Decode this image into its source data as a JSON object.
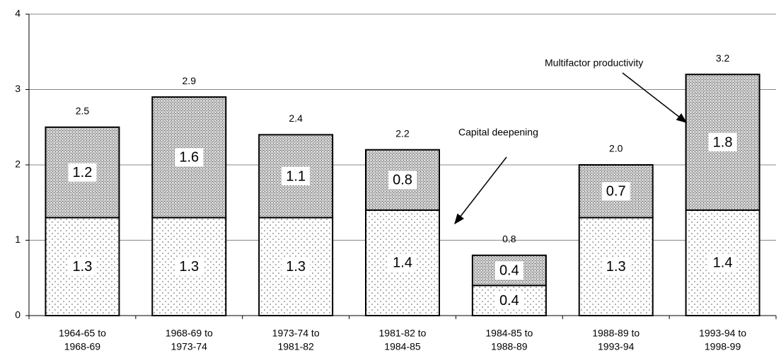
{
  "chart_data": {
    "type": "stacked_bar",
    "categories": [
      [
        "1964-65 to",
        "1968-69"
      ],
      [
        "1968-69 to",
        "1973-74"
      ],
      [
        "1973-74 to",
        "1981-82"
      ],
      [
        "1981-82 to",
        "1984-85"
      ],
      [
        "1984-85 to",
        "1988-89"
      ],
      [
        "1988-89 to",
        "1993-94"
      ],
      [
        "1993-94 to",
        "1998-99"
      ]
    ],
    "series": [
      {
        "name": "Capital deepening",
        "color": "#ffffff",
        "values": [
          1.3,
          1.3,
          1.3,
          1.4,
          0.4,
          1.3,
          1.4
        ]
      },
      {
        "name": "Multifactor productivity",
        "color": "#c8c8c8",
        "values": [
          1.2,
          1.6,
          1.1,
          0.8,
          0.4,
          0.7,
          1.8
        ]
      }
    ],
    "totals": {
      "values": [
        2.5,
        2.9,
        2.4,
        2.2,
        0.8,
        2,
        3.2
      ],
      "value_labels": [
        "2.5",
        "2.9",
        "2.4",
        "2.2",
        "0.8",
        "2.0",
        "3.2"
      ]
    },
    "ylim": [
      0,
      4
    ],
    "yticks": [
      0,
      1,
      2,
      3,
      4
    ],
    "grid": true
  }
}
